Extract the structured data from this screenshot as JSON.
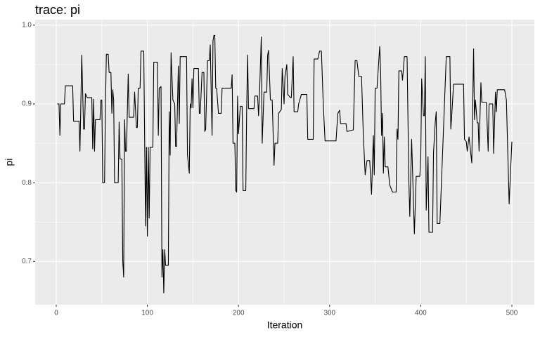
{
  "chart_data": {
    "type": "line",
    "title": "trace: pi",
    "x_label": "Iteration",
    "y_label": "pi",
    "color": "#000000",
    "grid": true,
    "background": "#ebebeb",
    "xlim": [
      -23.15,
      524.7
    ],
    "ylim": [
      0.645,
      1.007
    ],
    "xticks": [
      0,
      100,
      200,
      300,
      400,
      500
    ],
    "yticks": [
      0.7,
      0.8,
      0.9,
      {
        "value": 1,
        "label": "1.0"
      }
    ],
    "xminor": [
      50,
      150,
      250,
      350,
      450
    ],
    "yminor": [
      0.75,
      0.85,
      0.95
    ],
    "x": [
      1,
      3,
      4,
      5,
      9,
      10,
      18,
      19,
      25,
      26,
      27,
      28,
      30,
      31,
      32,
      34,
      39,
      40,
      41,
      42,
      43,
      48,
      49,
      50,
      51,
      53,
      54,
      55,
      57,
      58,
      60,
      61,
      62,
      63,
      64,
      68,
      69,
      70,
      72,
      73,
      74,
      75,
      76,
      77,
      79,
      80,
      85,
      86,
      88,
      89,
      90,
      92,
      93,
      96,
      98,
      99,
      100,
      101,
      102,
      103,
      106,
      107,
      111,
      112,
      113,
      115,
      116,
      117,
      118,
      119,
      120,
      123,
      124,
      125,
      126,
      128,
      130,
      131,
      132,
      134,
      135,
      136,
      143,
      144,
      146,
      147,
      148,
      149,
      150,
      151,
      156,
      157,
      158,
      160,
      162,
      163,
      164,
      166,
      168,
      169,
      171,
      172,
      173,
      174,
      175,
      176,
      178,
      181,
      182,
      192,
      193,
      194,
      196,
      197,
      198,
      199,
      200,
      202,
      204,
      205,
      208,
      209,
      210,
      211,
      217,
      218,
      221,
      222,
      223,
      225,
      226,
      228,
      231,
      232,
      233,
      235,
      237,
      239,
      240,
      243,
      244,
      247,
      248,
      250,
      251,
      253,
      254,
      257,
      258,
      260,
      261,
      265,
      266,
      269,
      275,
      276,
      282,
      283,
      287,
      289,
      291,
      293,
      295,
      307,
      309,
      311,
      312,
      318,
      319,
      326,
      328,
      330,
      332,
      335,
      337,
      339,
      341,
      344,
      346,
      348,
      349,
      350,
      352,
      355,
      356,
      357,
      358,
      359,
      360,
      361,
      364,
      366,
      369,
      373,
      374,
      375,
      376,
      379,
      380,
      382,
      385,
      387,
      388,
      390,
      393,
      395,
      399,
      400,
      401,
      403,
      404,
      405,
      406,
      408,
      409,
      413,
      414,
      416,
      417,
      418,
      421,
      428,
      432,
      433,
      434,
      436,
      447,
      448,
      450,
      451,
      453,
      456,
      458,
      459,
      460,
      462,
      463,
      464,
      466,
      467,
      472,
      474,
      475,
      479,
      480,
      482,
      483,
      484,
      492,
      494,
      497,
      500
    ],
    "y": [
      0.9,
      0.9,
      0.86,
      0.9,
      0.9,
      0.923,
      0.923,
      0.878,
      0.878,
      0.84,
      0.9,
      0.962,
      0.868,
      0.868,
      0.913,
      0.908,
      0.908,
      0.843,
      0.906,
      0.84,
      0.88,
      0.88,
      0.905,
      0.905,
      0.8,
      0.8,
      0.9,
      0.963,
      0.963,
      0.94,
      0.94,
      0.888,
      0.918,
      0.905,
      0.8,
      0.8,
      0.877,
      0.83,
      0.83,
      0.7,
      0.68,
      0.88,
      0.84,
      0.84,
      0.938,
      0.883,
      0.883,
      0.915,
      0.87,
      0.87,
      0.92,
      0.92,
      0.967,
      0.967,
      0.745,
      0.845,
      0.732,
      0.845,
      0.755,
      0.845,
      0.845,
      0.953,
      0.953,
      0.86,
      0.92,
      0.922,
      0.68,
      0.715,
      0.66,
      0.715,
      0.695,
      0.695,
      0.89,
      0.835,
      0.965,
      0.905,
      0.9,
      0.846,
      0.846,
      0.948,
      0.875,
      0.96,
      0.96,
      0.835,
      0.812,
      0.9,
      0.895,
      0.932,
      0.895,
      0.945,
      0.945,
      0.888,
      0.888,
      0.94,
      0.94,
      0.865,
      0.868,
      0.955,
      0.955,
      0.975,
      0.86,
      0.98,
      0.987,
      0.987,
      0.92,
      0.92,
      0.888,
      0.888,
      0.92,
      0.92,
      0.937,
      0.85,
      0.85,
      0.79,
      0.788,
      0.91,
      0.862,
      0.897,
      0.897,
      0.79,
      0.79,
      0.895,
      0.962,
      0.894,
      0.894,
      0.91,
      0.91,
      0.885,
      0.91,
      0.985,
      0.85,
      0.915,
      0.915,
      0.962,
      0.968,
      0.905,
      0.905,
      0.822,
      0.85,
      0.85,
      0.888,
      0.893,
      0.945,
      0.9,
      0.935,
      0.95,
      0.912,
      0.908,
      0.908,
      0.96,
      0.89,
      0.89,
      0.9,
      0.912,
      0.912,
      0.855,
      0.855,
      0.957,
      0.957,
      0.967,
      0.967,
      0.9,
      0.853,
      0.853,
      0.888,
      0.892,
      0.875,
      0.875,
      0.865,
      0.867,
      0.955,
      0.955,
      0.935,
      0.935,
      0.86,
      0.81,
      0.828,
      0.828,
      0.785,
      0.86,
      0.81,
      0.92,
      0.92,
      0.973,
      0.94,
      0.86,
      0.888,
      0.812,
      0.858,
      0.82,
      0.82,
      0.797,
      0.788,
      0.788,
      0.868,
      0.855,
      0.942,
      0.942,
      0.93,
      0.96,
      0.96,
      0.8,
      0.757,
      0.855,
      0.735,
      0.808,
      0.808,
      0.83,
      0.932,
      0.885,
      0.885,
      0.96,
      0.765,
      0.833,
      0.737,
      0.737,
      0.838,
      0.878,
      0.89,
      0.748,
      0.748,
      0.96,
      0.96,
      0.868,
      0.885,
      0.925,
      0.925,
      0.855,
      0.852,
      0.84,
      0.858,
      0.825,
      0.97,
      0.88,
      0.905,
      0.876,
      0.876,
      0.84,
      0.927,
      0.902,
      0.902,
      0.84,
      0.9,
      0.9,
      0.837,
      0.915,
      0.89,
      0.918,
      0.918,
      0.905,
      0.773,
      0.852
    ]
  }
}
